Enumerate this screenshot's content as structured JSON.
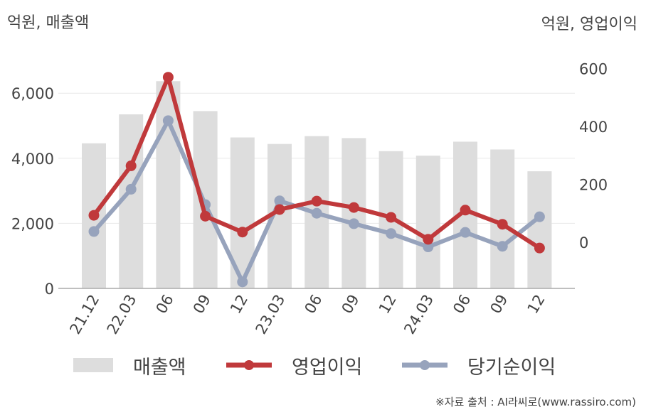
{
  "unit_left": "억원, 매출액",
  "unit_right": "억원, 영업이익",
  "source": "※자료 출처 : AI라씨로(www.rassiro.com)",
  "colors": {
    "revenue": "#dddddd",
    "operating_profit": "#c0393b",
    "net_income": "#97a3bc",
    "axis": "#aaaaaa",
    "grid": "#e8e8e8"
  },
  "chart_data": {
    "type": "bar",
    "categories": [
      "21.12",
      "22.03",
      "06",
      "09",
      "12",
      "23.03",
      "06",
      "09",
      "12",
      "24.03",
      "06",
      "09",
      "12"
    ],
    "left_axis": {
      "ylim": [
        0,
        7000
      ],
      "ticks": [
        "0",
        "2,000",
        "4,000",
        "6,000"
      ],
      "tick_values": [
        0,
        2000,
        4000,
        6000
      ]
    },
    "right_axis": {
      "ylim": [
        -160,
        640
      ],
      "ticks": [
        "0",
        "200",
        "400",
        "600"
      ],
      "tick_values": [
        0,
        200,
        400,
        600
      ]
    },
    "series": [
      {
        "name": "매출액",
        "type": "bar",
        "axis": "left",
        "values": [
          4460,
          5350,
          6370,
          5450,
          4640,
          4440,
          4680,
          4620,
          4220,
          4080,
          4510,
          4270,
          3600
        ]
      },
      {
        "name": "영업이익",
        "type": "line",
        "axis": "right",
        "values": [
          93,
          264,
          570,
          90,
          35,
          113,
          142,
          120,
          86,
          10,
          111,
          62,
          -20
        ]
      },
      {
        "name": "당기순이익",
        "type": "line",
        "axis": "right",
        "values": [
          37,
          183,
          420,
          130,
          -137,
          143,
          100,
          64,
          30,
          -16,
          34,
          -14,
          88
        ]
      }
    ],
    "legend_position": "bottom",
    "grid": true
  }
}
